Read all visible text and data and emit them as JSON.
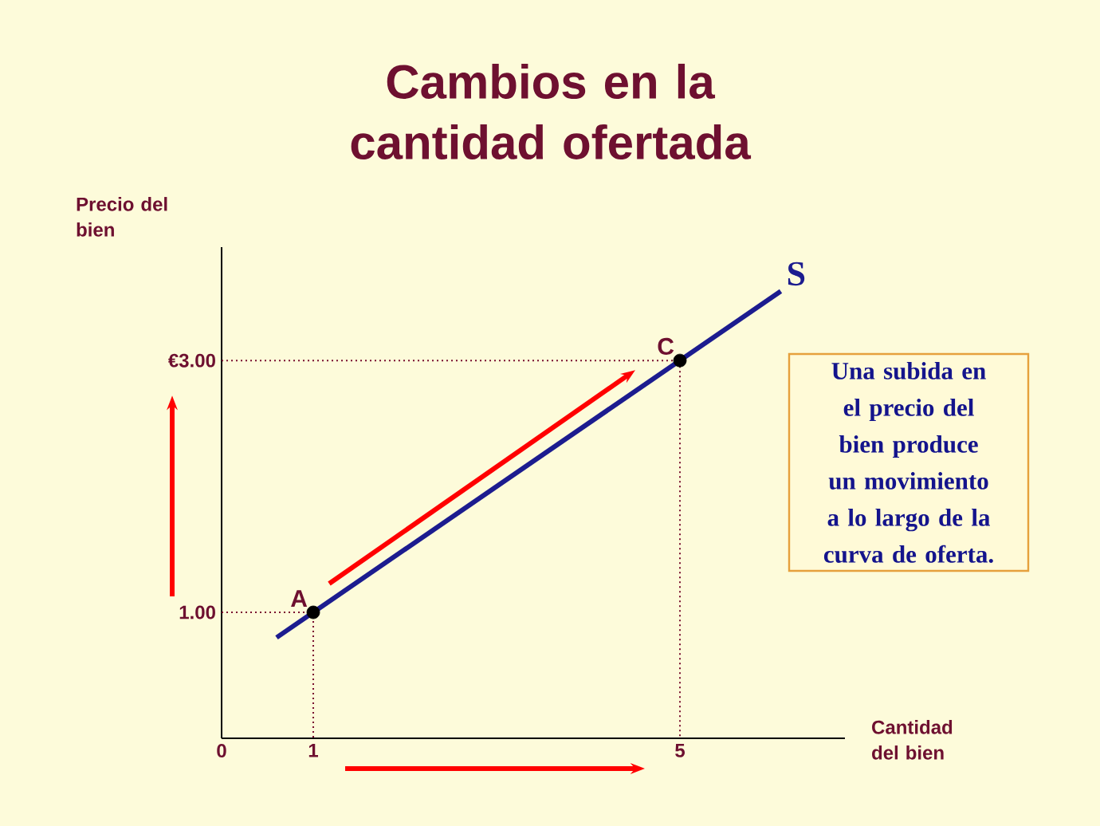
{
  "chart_data": {
    "type": "line",
    "title": "Cambios en la cantidad ofertada",
    "xlabel": "Cantidad del bien",
    "ylabel": "Precio del bien",
    "xlim": [
      0,
      6.8
    ],
    "ylim": [
      0,
      3.9
    ],
    "xticks": [
      0,
      1,
      5
    ],
    "yticks": [
      {
        "value": 1,
        "label": "1.00"
      },
      {
        "value": 3,
        "label": "€3.00"
      }
    ],
    "series": [
      {
        "name": "S",
        "color": "#1c1c8f",
        "x": [
          0.6,
          6.1
        ],
        "values": [
          0.8,
          3.55
        ]
      },
      {
        "line_style": "dotted",
        "color": "#7a1030",
        "x": [
          0,
          1,
          1
        ],
        "values": [
          1,
          1,
          0
        ]
      },
      {
        "line_style": "dotted",
        "color": "#7a1030",
        "x": [
          0,
          5,
          5
        ],
        "values": [
          3,
          3,
          0
        ]
      },
      {
        "type": "scatter",
        "marker": "circle",
        "color": "#000000",
        "x": [
          1,
          5
        ],
        "values": [
          1,
          3
        ]
      }
    ],
    "annotations": [
      {
        "text": "A",
        "x": 1,
        "y": 1
      },
      {
        "text": "C",
        "x": 5,
        "y": 3
      },
      "Una subida en el precio del bien produce un movimiento a lo largo de la curva de oferta."
    ]
  }
}
